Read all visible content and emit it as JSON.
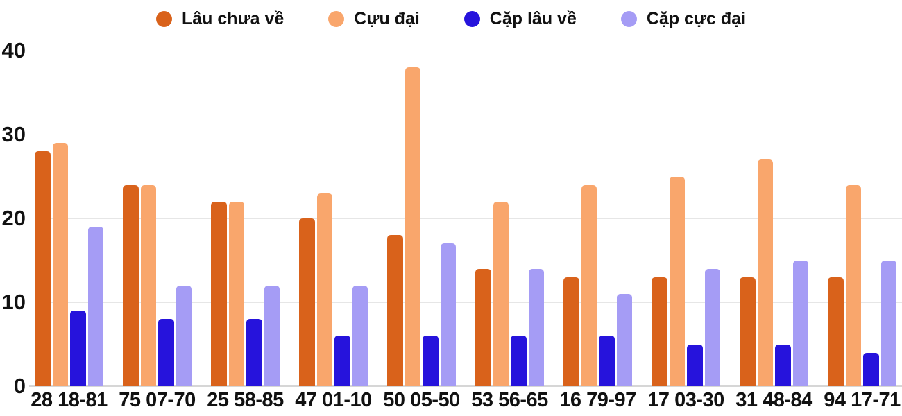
{
  "chart_data": {
    "type": "bar",
    "title": "",
    "xlabel": "",
    "ylabel": "",
    "legend_position": "top",
    "grid": true,
    "ylim": [
      0,
      40
    ],
    "yticks": [
      0,
      10,
      20,
      30,
      40
    ],
    "categories": [
      "28 18-81",
      "75 07-70",
      "25 58-85",
      "47 01-10",
      "50 05-50",
      "53 56-65",
      "16 79-97",
      "17 03-30",
      "31 48-84",
      "94 17-71"
    ],
    "series": [
      {
        "name": "Lâu chưa về",
        "color": "#d9621b",
        "values": [
          28,
          24,
          22,
          20,
          18,
          14,
          13,
          13,
          13,
          13
        ]
      },
      {
        "name": "Cựu đại",
        "color": "#f9a66c",
        "values": [
          29,
          24,
          22,
          23,
          38,
          22,
          24,
          25,
          27,
          24
        ]
      },
      {
        "name": "Cặp lâu về",
        "color": "#2613dc",
        "values": [
          9,
          8,
          8,
          6,
          6,
          6,
          6,
          5,
          5,
          4
        ]
      },
      {
        "name": "Cặp cực đại",
        "color": "#a59cf5",
        "values": [
          19,
          12,
          12,
          12,
          17,
          14,
          11,
          14,
          15,
          15
        ]
      }
    ]
  },
  "colors": {
    "gridline": "#e6e6e6",
    "baseline": "#d6d6d6",
    "text": "#111111",
    "background": "#ffffff"
  }
}
